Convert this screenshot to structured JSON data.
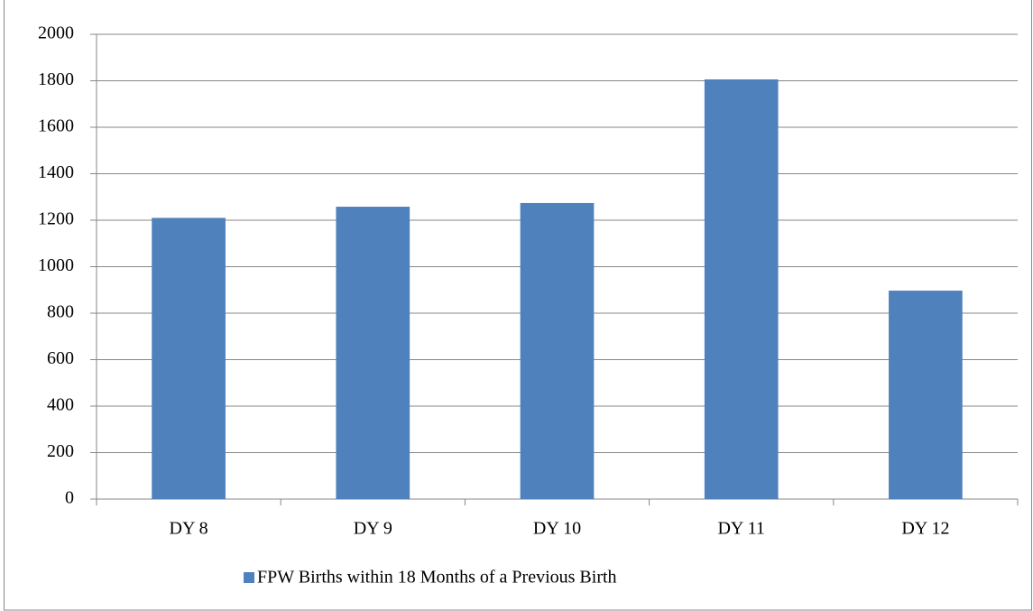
{
  "chart_data": {
    "type": "bar",
    "categories": [
      "DY 8",
      "DY 9",
      "DY 10",
      "DY 11",
      "DY 12"
    ],
    "series": [
      {
        "name": "FPW Births within 18 Months of a Previous Birth",
        "color": "#4f81bd",
        "values": [
          1210,
          1258,
          1274,
          1806,
          897
        ]
      }
    ],
    "ylim": [
      0,
      2000
    ],
    "yticks": [
      0,
      200,
      400,
      600,
      800,
      1000,
      1200,
      1400,
      1600,
      1800,
      2000
    ],
    "grid": true,
    "legend": "bottom"
  }
}
